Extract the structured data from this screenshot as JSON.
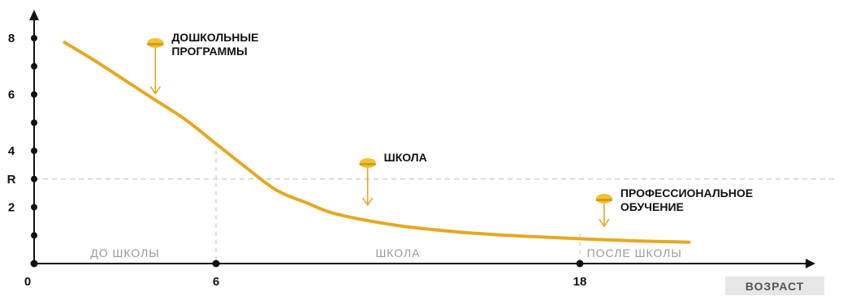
{
  "chart_data": {
    "type": "line",
    "x_axis": {
      "title": "ВОЗРАСТ",
      "range": [
        0,
        22
      ],
      "tick_values": [
        0,
        6,
        18
      ],
      "tick_labels": [
        "0",
        "6",
        "18"
      ]
    },
    "y_axis": {
      "range": [
        0,
        8.6
      ],
      "tick_values": [
        1,
        2,
        3,
        4,
        5,
        6,
        7,
        8
      ],
      "labeled_ticks": [
        {
          "value": 2,
          "label": "2"
        },
        {
          "value": 3,
          "label": "R"
        },
        {
          "value": 4,
          "label": "4"
        },
        {
          "value": 6,
          "label": "6"
        },
        {
          "value": 8,
          "label": "8"
        }
      ]
    },
    "reference_line": {
      "y": 3,
      "label": "R"
    },
    "dividers": [
      6,
      18
    ],
    "periods": [
      {
        "label": "ДО ШКОЛЫ",
        "x_from": 0,
        "x_to": 6
      },
      {
        "label": "ШКОЛА",
        "x_from": 6,
        "x_to": 18
      },
      {
        "label": "ПОСЛЕ ШКОЛЫ",
        "x_from": 18,
        "x_to": 22
      }
    ],
    "series": [
      {
        "color": "#E5A823",
        "points": [
          [
            1,
            7.85
          ],
          [
            2,
            7.2
          ],
          [
            3,
            6.5
          ],
          [
            4,
            5.8
          ],
          [
            5,
            5.1
          ],
          [
            6,
            4.25
          ],
          [
            7,
            3.4
          ],
          [
            8,
            2.6
          ],
          [
            9,
            2.15
          ],
          [
            10,
            1.75
          ],
          [
            12,
            1.35
          ],
          [
            14,
            1.12
          ],
          [
            16,
            0.98
          ],
          [
            18,
            0.88
          ],
          [
            20,
            0.8
          ],
          [
            21.6,
            0.76
          ]
        ]
      }
    ],
    "annotations": [
      {
        "lines": [
          "ДОШКОЛЬНЫЕ",
          "ПРОГРАММЫ"
        ],
        "x": 4,
        "y": 5.85
      },
      {
        "lines": [
          "ШКОЛА"
        ],
        "x": 11,
        "y": 1.9
      },
      {
        "lines": [
          "ПРОФЕССИОНАЛЬНОЕ",
          "ОБУЧЕНИЕ"
        ],
        "x": 18.8,
        "y": 1.15
      }
    ]
  },
  "colors": {
    "curve": "#E5A823",
    "marker": "#F2C12E",
    "axis": "#111111",
    "guide": "#c8c8c8",
    "xtitle_bg": "#e6e6e6"
  }
}
